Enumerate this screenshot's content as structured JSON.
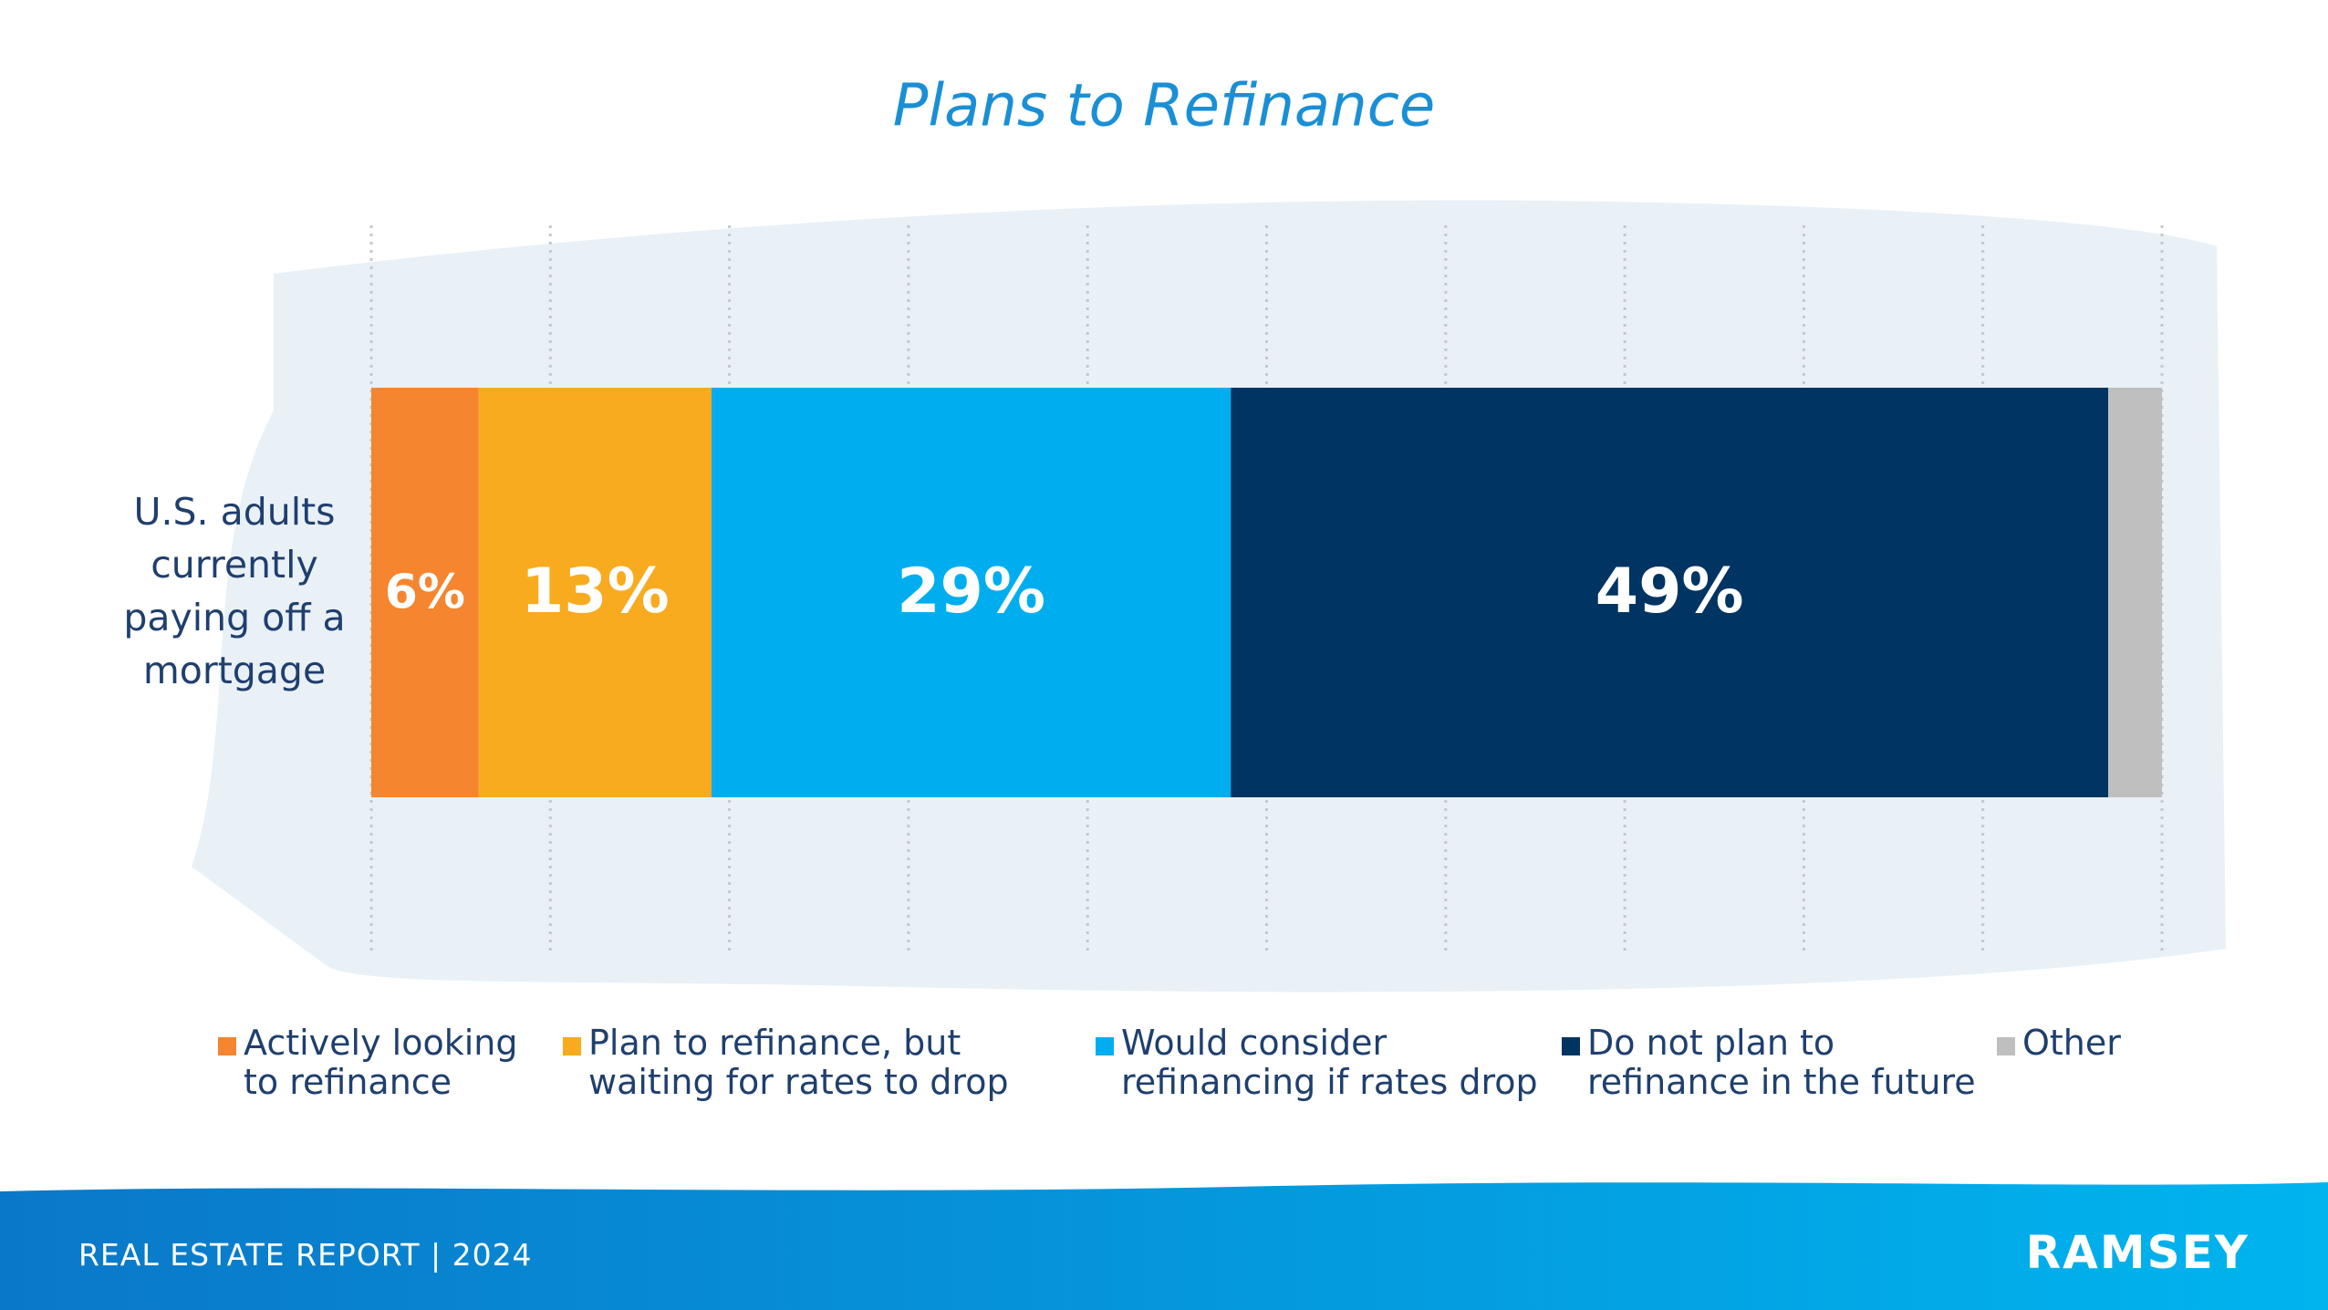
{
  "chart_data": {
    "type": "stacked-bar-horizontal",
    "title": "Plans to Refinance",
    "categories": [
      "U.S. adults currently paying off a mortgage"
    ],
    "series": [
      {
        "name": "Actively looking to refinance",
        "color": "#f5852f",
        "values": [
          6
        ],
        "value_labels": [
          "6%"
        ]
      },
      {
        "name": "Plan to refinance, but waiting for rates to drop",
        "color": "#f8ab1e",
        "values": [
          13
        ],
        "value_labels": [
          "13%"
        ]
      },
      {
        "name": "Would consider refinancing if rates drop",
        "color": "#00aeef",
        "values": [
          29
        ],
        "value_labels": [
          "29%"
        ]
      },
      {
        "name": "Do not plan to refinance in the future",
        "color": "#003462",
        "values": [
          49
        ],
        "value_labels": [
          "49%"
        ]
      },
      {
        "name": "Other",
        "color": "#bfbfbf",
        "values": [
          3
        ],
        "value_labels": [
          null
        ]
      }
    ],
    "xlim": [
      0,
      100
    ],
    "xticks": [
      0,
      10,
      20,
      30,
      40,
      50,
      60,
      70,
      80,
      90,
      100
    ],
    "grid": true
  },
  "footer": {
    "report": "REAL ESTATE REPORT | 2024",
    "brand": "RAMSEY"
  }
}
